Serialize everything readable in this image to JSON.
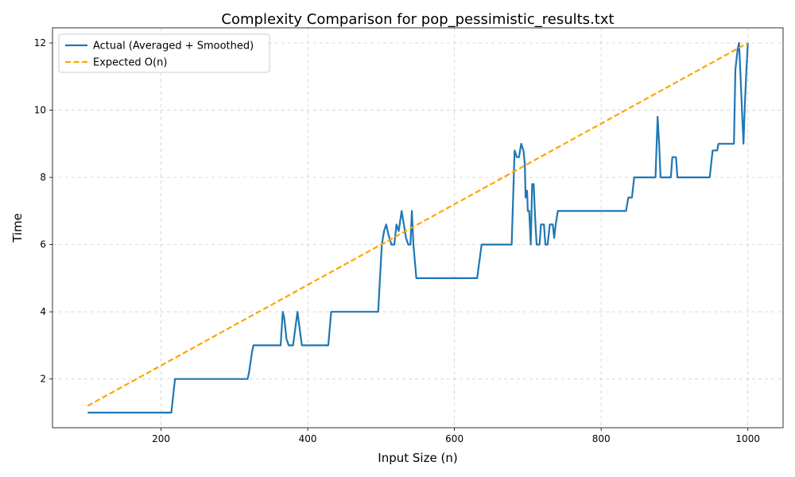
{
  "chart_data": {
    "type": "line",
    "title": "Complexity Comparison for pop_pessimistic_results.txt",
    "xlabel": "Input Size (n)",
    "ylabel": "Time",
    "xlim": [
      52,
      1048
    ],
    "ylim": [
      0.55,
      12.45
    ],
    "xticks": [
      200,
      400,
      600,
      800,
      1000
    ],
    "yticks": [
      2,
      4,
      6,
      8,
      10,
      12
    ],
    "grid": true,
    "legend_position": "top-left",
    "series": [
      {
        "name": "Actual (Averaged + Smoothed)",
        "color": "#1f77b4",
        "style": "solid",
        "points": [
          [
            100,
            1
          ],
          [
            214,
            1
          ],
          [
            219,
            2
          ],
          [
            318,
            2
          ],
          [
            320,
            2.2
          ],
          [
            324,
            2.8
          ],
          [
            326,
            3
          ],
          [
            363,
            3
          ],
          [
            366,
            4
          ],
          [
            368,
            3.8
          ],
          [
            371,
            3.2
          ],
          [
            374,
            3
          ],
          [
            380,
            3
          ],
          [
            383,
            3.5
          ],
          [
            386,
            4
          ],
          [
            389,
            3.5
          ],
          [
            392,
            3
          ],
          [
            428,
            3
          ],
          [
            432,
            4
          ],
          [
            496,
            4
          ],
          [
            498,
            4.8
          ],
          [
            501,
            6
          ],
          [
            504,
            6.4
          ],
          [
            507,
            6.6
          ],
          [
            510,
            6.3
          ],
          [
            514,
            6
          ],
          [
            518,
            6
          ],
          [
            521,
            6.6
          ],
          [
            524,
            6.4
          ],
          [
            528,
            7
          ],
          [
            531,
            6.6
          ],
          [
            534,
            6.2
          ],
          [
            537,
            6
          ],
          [
            540,
            6
          ],
          [
            542,
            7
          ],
          [
            544,
            6
          ],
          [
            548,
            5
          ],
          [
            631,
            5
          ],
          [
            637,
            6
          ],
          [
            678,
            6
          ],
          [
            682,
            8.8
          ],
          [
            685,
            8.6
          ],
          [
            688,
            8.6
          ],
          [
            691,
            9
          ],
          [
            694,
            8.8
          ],
          [
            696,
            8.4
          ],
          [
            697,
            7.4
          ],
          [
            699,
            7.6
          ],
          [
            700,
            7
          ],
          [
            702,
            7
          ],
          [
            704,
            6
          ],
          [
            706,
            7.8
          ],
          [
            708,
            7.8
          ],
          [
            710,
            6.8
          ],
          [
            712,
            6
          ],
          [
            716,
            6
          ],
          [
            718,
            6.6
          ],
          [
            722,
            6.6
          ],
          [
            724,
            6
          ],
          [
            727,
            6
          ],
          [
            730,
            6.6
          ],
          [
            734,
            6.6
          ],
          [
            736,
            6.2
          ],
          [
            738,
            6.6
          ],
          [
            741,
            7
          ],
          [
            834,
            7
          ],
          [
            837,
            7.4
          ],
          [
            842,
            7.4
          ],
          [
            845,
            8
          ],
          [
            874,
            8
          ],
          [
            877,
            9.8
          ],
          [
            879,
            9
          ],
          [
            881,
            8
          ],
          [
            895,
            8
          ],
          [
            897,
            8.6
          ],
          [
            902,
            8.6
          ],
          [
            904,
            8
          ],
          [
            948,
            8
          ],
          [
            952,
            8.8
          ],
          [
            958,
            8.8
          ],
          [
            960,
            9
          ],
          [
            981,
            9
          ],
          [
            983,
            11.2
          ],
          [
            986,
            11.8
          ],
          [
            988,
            12
          ],
          [
            990,
            11
          ],
          [
            992,
            10
          ],
          [
            994,
            9
          ],
          [
            996,
            10.2
          ],
          [
            998,
            11.2
          ],
          [
            1000,
            12
          ]
        ]
      },
      {
        "name": "Expected O(n)",
        "color": "#ffa500",
        "style": "dashed",
        "points": [
          [
            100,
            1.2
          ],
          [
            1000,
            12
          ]
        ]
      }
    ]
  }
}
